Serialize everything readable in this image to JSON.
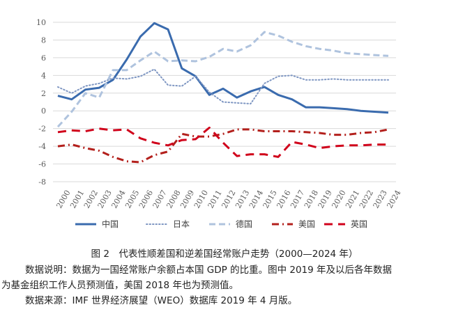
{
  "chart_data": {
    "type": "line",
    "title": "",
    "xlabel": "",
    "ylabel": "",
    "ylim": [
      -8,
      10
    ],
    "yticks": [
      10,
      8,
      6,
      4,
      2,
      0,
      -2,
      -4,
      -6,
      -8
    ],
    "grid": "horizontal",
    "legend_position": "bottom",
    "x": [
      "2000",
      "2001",
      "2002",
      "2003",
      "2004",
      "2005",
      "2006",
      "2007",
      "2008",
      "2009",
      "2010",
      "2011",
      "2012",
      "2013",
      "2014",
      "2015",
      "2016",
      "2017",
      "2018",
      "2019",
      "2020",
      "2021",
      "2022",
      "2023",
      "2024"
    ],
    "series": [
      {
        "name": "中国",
        "color": "#3A6BAE",
        "style": "solid",
        "values": [
          1.7,
          1.3,
          2.4,
          2.6,
          3.5,
          5.8,
          8.4,
          9.9,
          9.2,
          4.8,
          3.9,
          1.8,
          2.5,
          1.5,
          2.2,
          2.7,
          1.8,
          1.3,
          0.4,
          0.4,
          0.3,
          0.2,
          0.0,
          -0.1,
          -0.2
        ]
      },
      {
        "name": "日本",
        "color": "#7E96C2",
        "style": "dotted",
        "values": [
          2.7,
          2.0,
          2.8,
          3.1,
          3.7,
          3.6,
          3.9,
          4.7,
          2.9,
          2.8,
          3.9,
          2.1,
          1.0,
          0.9,
          0.8,
          3.1,
          3.9,
          4.0,
          3.5,
          3.5,
          3.6,
          3.5,
          3.5,
          3.5,
          3.5
        ]
      },
      {
        "name": "德国",
        "color": "#AFC3DE",
        "style": "dashed",
        "values": [
          -1.8,
          -0.1,
          2.0,
          1.5,
          4.6,
          4.6,
          5.7,
          6.7,
          5.6,
          5.7,
          5.6,
          6.1,
          7.0,
          6.7,
          7.4,
          8.9,
          8.5,
          7.8,
          7.3,
          7.0,
          6.8,
          6.5,
          6.4,
          6.3,
          6.2
        ]
      },
      {
        "name": "美国",
        "color": "#B3201C",
        "style": "dashdot",
        "values": [
          -4.0,
          -3.8,
          -4.2,
          -4.5,
          -5.2,
          -5.7,
          -5.8,
          -5.0,
          -4.6,
          -2.6,
          -2.9,
          -2.9,
          -2.6,
          -2.1,
          -2.1,
          -2.3,
          -2.3,
          -2.3,
          -2.4,
          -2.5,
          -2.7,
          -2.7,
          -2.5,
          -2.4,
          -2.1
        ]
      },
      {
        "name": "英国",
        "color": "#D0021B",
        "style": "longdash",
        "values": [
          -2.4,
          -2.2,
          -2.3,
          -2.0,
          -2.2,
          -2.1,
          -3.1,
          -3.6,
          -3.9,
          -3.3,
          -3.2,
          -1.9,
          -3.6,
          -5.1,
          -4.9,
          -4.9,
          -5.2,
          -3.5,
          -3.8,
          -4.2,
          -4.0,
          -3.9,
          -3.9,
          -3.8,
          -3.8
        ]
      }
    ]
  },
  "figure": {
    "title": "图 2　代表性顺差国和逆差国经常账户走势（2000—2024 年）",
    "note_line1": "数据说明：数据为一国经常账户余额占本国 GDP 的比重。图中 2019 年及以后各年数据",
    "note_line2": "为基金组织工作人员预测值，美国 2018 年也为预测值。",
    "source": "数据来源：IMF 世界经济展望（WEO）数据库 2019 年 4 月版。"
  }
}
